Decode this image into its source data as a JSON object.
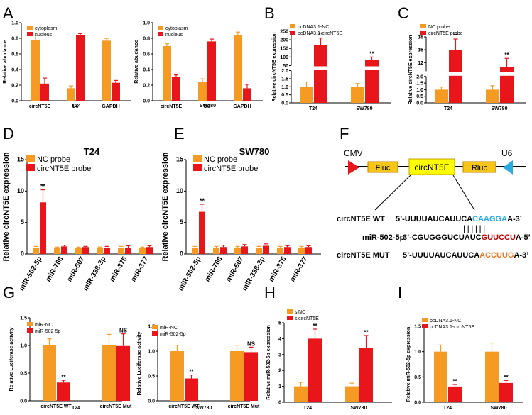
{
  "colors": {
    "orange": "#F59A23",
    "red": "#E8151B",
    "axis": "#000000",
    "cmv": "#E8151B",
    "u6": "#29ABE2",
    "box": "#F5C518",
    "boxCirc": "#FFFF00",
    "seqBlue": "#29ABE2",
    "seqRed": "#C00000",
    "seqOrange": "#E87722"
  },
  "panel_letters": [
    "A",
    "B",
    "C",
    "D",
    "E",
    "F",
    "G",
    "H",
    "I"
  ],
  "chart_data": [
    {
      "id": "A1",
      "type": "bar",
      "title": "",
      "subtitle": "T24",
      "ylabel": "Relative abudance",
      "ylim": [
        0,
        1.0
      ],
      "yticks": [
        "0.0",
        "0.2",
        "0.4",
        "0.6",
        "0.8",
        "1.0"
      ],
      "categories": [
        "circNT5E",
        "U6",
        "GAPDH"
      ],
      "series": [
        {
          "name": "cytoplasm",
          "color": "orange",
          "values": [
            0.78,
            0.16,
            0.77
          ],
          "errors": [
            0.06,
            0.03,
            0.03
          ]
        },
        {
          "name": "nucleus",
          "color": "red",
          "values": [
            0.22,
            0.84,
            0.23
          ],
          "errors": [
            0.07,
            0.02,
            0.03
          ]
        }
      ]
    },
    {
      "id": "A2",
      "type": "bar",
      "subtitle": "SW780",
      "ylabel": "Relative abudance",
      "ylim": [
        0,
        1.0
      ],
      "yticks": [
        "0.0",
        "0.2",
        "0.4",
        "0.6",
        "0.8",
        "1.0"
      ],
      "categories": [
        "circNT5E",
        "U6",
        "GAPDH"
      ],
      "series": [
        {
          "name": "cytoplasm",
          "color": "orange",
          "values": [
            0.7,
            0.24,
            0.84
          ],
          "errors": [
            0.03,
            0.04,
            0.04
          ]
        },
        {
          "name": "nucleus",
          "color": "red",
          "values": [
            0.3,
            0.76,
            0.16
          ],
          "errors": [
            0.03,
            0.03,
            0.05
          ]
        }
      ]
    },
    {
      "id": "B",
      "type": "bar",
      "ylabel": "Relative circNT5E  expression",
      "broken_axis": {
        "lower": [
          0,
          2.0
        ],
        "lower_ticks": [
          "0.0",
          "0.5",
          "1.0",
          "1.5",
          "2.0"
        ],
        "upper": [
          50,
          250
        ],
        "upper_ticks": [
          "50",
          "100",
          "150",
          "200",
          "250"
        ]
      },
      "categories": [
        "T24",
        "SW780"
      ],
      "series": [
        {
          "name": "pcDNA3.1-NC",
          "color": "orange",
          "values": [
            1.0,
            1.0
          ],
          "errors": [
            0.3,
            0.2
          ]
        },
        {
          "name": "pcDNA3.1-circNT5E",
          "color": "red",
          "values": [
            170,
            85
          ],
          "errors": [
            40,
            15
          ]
        }
      ],
      "annotations": [
        "**",
        "**"
      ]
    },
    {
      "id": "C",
      "type": "bar",
      "ylabel": "Relative circNT5E  expression",
      "broken_axis": {
        "lower": [
          0,
          2.0
        ],
        "lower_ticks": [
          "0.0",
          "0.5",
          "1.0",
          "1.5",
          "2.0"
        ],
        "upper": [
          10,
          18
        ],
        "upper_ticks": [
          "12",
          "15",
          "18"
        ]
      },
      "categories": [
        "T24",
        "SW780"
      ],
      "series": [
        {
          "name": "NC probe",
          "color": "orange",
          "values": [
            1.0,
            1.0
          ],
          "errors": [
            0.2,
            0.3
          ]
        },
        {
          "name": "circNT5E probe",
          "color": "red",
          "values": [
            15,
            11
          ],
          "errors": [
            2.5,
            2.0
          ]
        }
      ],
      "annotations": [
        "**",
        "**"
      ]
    },
    {
      "id": "D",
      "type": "bar",
      "title": "T24",
      "ylabel": "Relative circNT5E  expression",
      "ylim": [
        0,
        15
      ],
      "yticks": [
        "0",
        "5",
        "10",
        "15"
      ],
      "categories": [
        "miR-502-5p",
        "miR-766",
        "miR-507",
        "miR-338-3p",
        "miR-375",
        "miR-377"
      ],
      "series": [
        {
          "name": "NC probe",
          "color": "orange",
          "values": [
            1.0,
            1.0,
            1.0,
            1.0,
            1.0,
            1.0
          ],
          "errors": [
            0.2,
            0.1,
            0.1,
            0.1,
            0.2,
            0.1
          ]
        },
        {
          "name": "circNT5E probe",
          "color": "red",
          "values": [
            8.2,
            1.2,
            1.1,
            1.0,
            1.0,
            1.1
          ],
          "errors": [
            2.0,
            0.2,
            0.1,
            0.2,
            0.3,
            0.2
          ]
        }
      ],
      "annotations": [
        "**"
      ]
    },
    {
      "id": "E",
      "type": "bar",
      "title": "SW780",
      "ylabel": "Relative circNT5E  expression",
      "ylim": [
        0,
        15
      ],
      "yticks": [
        "0",
        "5",
        "10",
        "15"
      ],
      "categories": [
        "miR-502-5p",
        "miR-766",
        "miR-507",
        "miR-338-3p",
        "miR-375",
        "miR-377"
      ],
      "series": [
        {
          "name": "NC probe",
          "color": "orange",
          "values": [
            1.0,
            1.0,
            1.0,
            1.0,
            1.0,
            1.0
          ],
          "errors": [
            0.2,
            0.2,
            0.2,
            0.2,
            0.2,
            0.2
          ]
        },
        {
          "name": "circNT5E probe",
          "color": "red",
          "values": [
            6.7,
            1.1,
            1.2,
            1.3,
            1.1,
            1.1
          ],
          "errors": [
            1.2,
            0.3,
            0.3,
            0.3,
            0.2,
            0.2
          ]
        }
      ],
      "annotations": [
        "**"
      ]
    },
    {
      "id": "G1",
      "type": "bar",
      "subtitle": "T24",
      "ylabel": "Relative Luciferase activity",
      "ylim": [
        0,
        1.5
      ],
      "yticks": [
        "0.0",
        "0.5",
        "1.0",
        "1.5"
      ],
      "categories": [
        "circNT5E WT",
        "circNT5E Mut"
      ],
      "series": [
        {
          "name": "miR-NC",
          "color": "orange",
          "values": [
            1.0,
            1.0
          ],
          "errors": [
            0.12,
            0.2
          ]
        },
        {
          "name": "miR-502-5p",
          "color": "red",
          "values": [
            0.33,
            0.99
          ],
          "errors": [
            0.04,
            0.22
          ]
        }
      ],
      "annotations": [
        "**",
        "NS"
      ]
    },
    {
      "id": "G2",
      "type": "bar",
      "subtitle": "SW780",
      "ylabel": "Relative Luciferase activity",
      "ylim": [
        0,
        1.5
      ],
      "yticks": [
        "0.0",
        "0.5",
        "1.0",
        "1.5"
      ],
      "categories": [
        "circNT5E WT",
        "circNT5E Mut"
      ],
      "series": [
        {
          "name": "miR-NC",
          "color": "orange",
          "values": [
            1.0,
            1.0
          ],
          "errors": [
            0.12,
            0.12
          ]
        },
        {
          "name": "miR-502-5p",
          "color": "red",
          "values": [
            0.45,
            0.98
          ],
          "errors": [
            0.07,
            0.1
          ]
        }
      ],
      "annotations": [
        "**",
        "NS"
      ]
    },
    {
      "id": "H",
      "type": "bar",
      "ylabel": "Relative miR-502-5p expression",
      "ylim": [
        0,
        5
      ],
      "yticks": [
        "0",
        "1",
        "2",
        "3",
        "4",
        "5"
      ],
      "categories": [
        "T24",
        "SW780"
      ],
      "series": [
        {
          "name": "siNC",
          "color": "orange",
          "values": [
            1.0,
            1.0
          ],
          "errors": [
            0.25,
            0.2
          ]
        },
        {
          "name": "sicircNT5E",
          "color": "red",
          "values": [
            4.0,
            3.4
          ],
          "errors": [
            0.6,
            0.8
          ]
        }
      ],
      "annotations": [
        "**",
        "**"
      ]
    },
    {
      "id": "I",
      "type": "bar",
      "ylabel": "Relative miR-502-5p expression",
      "ylim": [
        0,
        1.5
      ],
      "yticks": [
        "0.0",
        "0.5",
        "1.0",
        "1.5"
      ],
      "categories": [
        "T24",
        "SW780"
      ],
      "series": [
        {
          "name": "pcDNA3.1-NC",
          "color": "orange",
          "values": [
            1.0,
            1.0
          ],
          "errors": [
            0.13,
            0.17
          ]
        },
        {
          "name": "pcDNA3.1-circNT5E",
          "color": "red",
          "values": [
            0.31,
            0.38
          ],
          "errors": [
            0.04,
            0.05
          ]
        }
      ],
      "annotations": [
        "**",
        "**"
      ]
    }
  ],
  "construct": {
    "cmv": "CMV",
    "u6": "U6",
    "fluc": "Fluc",
    "circ": "circNT5E",
    "rluc": "Rluc"
  },
  "sequences": {
    "wt_label": "circNT5E  WT",
    "wt_seq": "5’-UUUUAUCAUUCA",
    "wt_site": "CAAGGA",
    "wt_end": "A-3’",
    "mir_label": "miR-502-5p",
    "mir_seq": "3’-CGUGGGUCUAUC",
    "mir_site": "GUUCCU",
    "mir_end": "A-5’",
    "mut_label": "circNT5E  MUT",
    "mut_seq": "5’-UUUUAUCAUUCA",
    "mut_site": "ACCUUG",
    "mut_end": "A-3’",
    "pairs": "||||||"
  }
}
